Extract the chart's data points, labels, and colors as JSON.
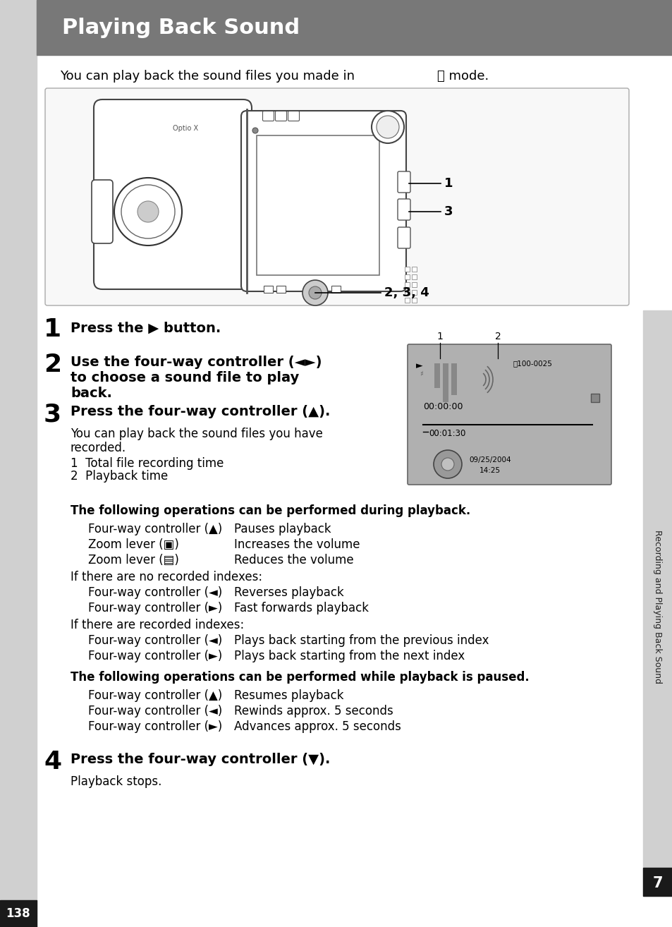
{
  "title": "Playing Back Sound",
  "title_bg": "#787878",
  "title_fg": "#ffffff",
  "page_bg": "#ffffff",
  "left_bar_color": "#d0d0d0",
  "sidebar_bg": "#d0d0d0",
  "sidebar_num_bg": "#1a1a1a",
  "sidebar_text_color": "#222222",
  "intro": "You can play back the sound files you made in  ♯ mode.",
  "step1_bold": "Press the ▶ button.",
  "step2_bold_line1": "Use the four-way controller (◄►)",
  "step2_bold_line2": "to choose a sound file to play",
  "step2_bold_line3": "back.",
  "step3_bold": "Press the four-way controller (▲).",
  "step3_body1": "You can play back the sound files you have",
  "step3_body2": "recorded.",
  "step3_item1": "1  Total file recording time",
  "step3_item2": "2  Playback time",
  "bold1": "The following operations can be performed during playback.",
  "ops1_key": [
    "Four-way controller (▲)",
    "Zoom lever (▣)",
    "Zoom lever (▤)"
  ],
  "ops1_val": [
    "Pauses playback",
    "Increases the volume",
    "Reduces the volume"
  ],
  "no_idx": "If there are no recorded indexes:",
  "ops2_key": [
    "Four-way controller (◄)",
    "Four-way controller (►)"
  ],
  "ops2_val": [
    "Reverses playback",
    "Fast forwards playback"
  ],
  "yes_idx": "If there are recorded indexes:",
  "ops3_key": [
    "Four-way controller (◄)",
    "Four-way controller (►)"
  ],
  "ops3_val": [
    "Plays back starting from the previous index",
    "Plays back starting from the next index"
  ],
  "bold2": "The following operations can be performed while playback is paused.",
  "ops4_key": [
    "Four-way controller (▲)",
    "Four-way controller (◄)",
    "Four-way controller (►)"
  ],
  "ops4_val": [
    "Resumes playback",
    "Rewinds approx. 5 seconds",
    "Advances approx. 5 seconds"
  ],
  "step4_bold": "Press the four-way controller (▼).",
  "step4_body": "Playback stops.",
  "sidebar_text": "Recording and Playing Back Sound",
  "sidebar_num": "7",
  "page_num": "138"
}
